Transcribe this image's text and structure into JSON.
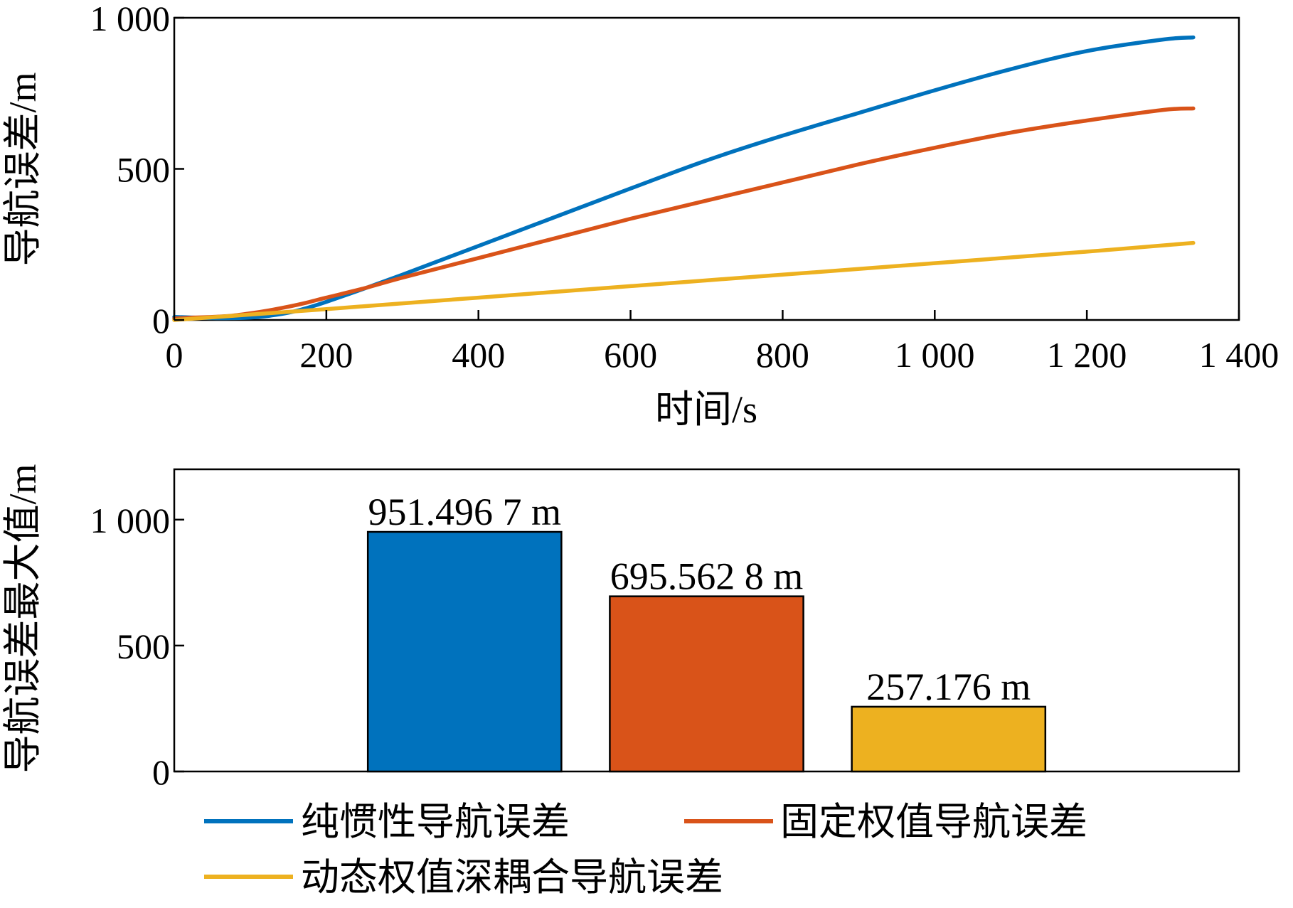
{
  "chart_data": [
    {
      "type": "line",
      "xlabel": "时间/s",
      "ylabel": "导航误差/m",
      "xlim": [
        0,
        1400
      ],
      "ylim": [
        0,
        1000
      ],
      "xticks": [
        0,
        200,
        400,
        600,
        800,
        1000,
        1200,
        1400
      ],
      "xtick_labels": [
        "0",
        "200",
        "400",
        "600",
        "800",
        "1 000",
        "1 200",
        "1 400"
      ],
      "yticks": [
        0,
        500,
        1000
      ],
      "ytick_labels": [
        "0",
        "500",
        "1 000"
      ],
      "grid": false,
      "series": [
        {
          "name": "纯惯性导航误差",
          "color": "#0072BD",
          "x": [
            0,
            25,
            50,
            75,
            100,
            125,
            150,
            175,
            200,
            250,
            300,
            400,
            500,
            600,
            700,
            800,
            900,
            1000,
            1100,
            1200,
            1300,
            1340
          ],
          "y": [
            10,
            8,
            6,
            6,
            8,
            14,
            24,
            40,
            60,
            104,
            150,
            245,
            340,
            435,
            528,
            610,
            685,
            760,
            830,
            890,
            928,
            935
          ]
        },
        {
          "name": "固定权值导航误差",
          "color": "#D95319",
          "x": [
            0,
            25,
            50,
            75,
            100,
            125,
            150,
            175,
            200,
            250,
            300,
            400,
            500,
            600,
            700,
            800,
            900,
            1000,
            1100,
            1200,
            1300,
            1340
          ],
          "y": [
            5,
            8,
            10,
            14,
            22,
            32,
            44,
            58,
            74,
            105,
            140,
            205,
            270,
            335,
            395,
            455,
            515,
            570,
            620,
            660,
            695,
            700
          ]
        },
        {
          "name": "动态权值深耦合导航误差",
          "color": "#EDB120",
          "x": [
            0,
            100,
            200,
            400,
            600,
            800,
            1000,
            1200,
            1340
          ],
          "y": [
            0,
            18,
            36,
            74,
            112,
            150,
            188,
            226,
            255
          ]
        }
      ]
    },
    {
      "type": "bar",
      "ylabel": "导航误差最大值/m",
      "xlim": [
        0,
        4.4
      ],
      "ylim": [
        0,
        1200
      ],
      "yticks": [
        0,
        500,
        1000
      ],
      "ytick_labels": [
        "0",
        "500",
        "1 000"
      ],
      "categories": [
        "纯惯性导航误差",
        "固定权值导航误差",
        "动态权值深耦合导航误差"
      ],
      "x": [
        1.2,
        2.2,
        3.2
      ],
      "bar_width": 0.8,
      "values": [
        951.4967,
        695.5628,
        257.176
      ],
      "data_labels": [
        "951.496 7 m",
        "695.562 8 m",
        "257.176 m"
      ],
      "colors": [
        "#0072BD",
        "#D95319",
        "#EDB120"
      ]
    }
  ],
  "legend": {
    "placement": "bottom",
    "items": [
      {
        "label": "纯惯性导航误差",
        "color": "#0072BD"
      },
      {
        "label": "固定权值导航误差",
        "color": "#D95319"
      },
      {
        "label": "动态权值深耦合导航误差",
        "color": "#EDB120"
      }
    ]
  }
}
